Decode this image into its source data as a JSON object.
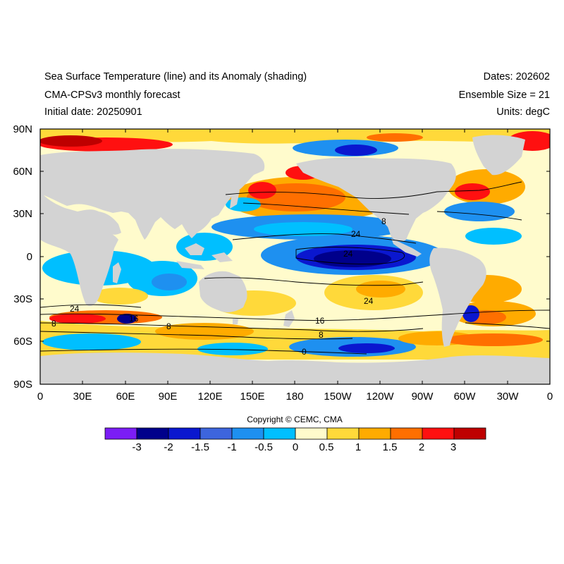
{
  "header": {
    "title": "Sea Surface Temperature (line) and its Anomaly (shading)",
    "model": "CMA-CPSv3 monthly forecast",
    "initial_date": "Initial date: 20250901",
    "dates": "Dates: 202602",
    "ensemble": "Ensemble Size = 21",
    "units": "Units: degC"
  },
  "axes": {
    "y_labels": [
      "90N",
      "60N",
      "30N",
      "0",
      "30S",
      "60S",
      "90S"
    ],
    "x_labels": [
      "0",
      "30E",
      "60E",
      "90E",
      "120E",
      "150E",
      "180",
      "150W",
      "120W",
      "90W",
      "60W",
      "30W",
      "0"
    ]
  },
  "copyright": "Copyright © CEMC, CMA",
  "colorbar": {
    "labels": [
      "-3",
      "-2",
      "-1.5",
      "-1",
      "-0.5",
      "0",
      "0.5",
      "1",
      "1.5",
      "2",
      "3"
    ],
    "colors": [
      "#7b1df5",
      "#00008b",
      "#0a17cf",
      "#3d65dd",
      "#1e90f0",
      "#00bfff",
      "#fffbcc",
      "#ffd93a",
      "#ffab00",
      "#ff6f00",
      "#ff1010",
      "#be0000"
    ]
  },
  "contour_labels": [
    "24",
    "24",
    "24",
    "24",
    "16",
    "16",
    "8",
    "8",
    "8",
    "0",
    "8"
  ],
  "colors": {
    "land": "#d3d3d3",
    "ocean_neutral": "#fffbcc",
    "contour": "#000000"
  }
}
